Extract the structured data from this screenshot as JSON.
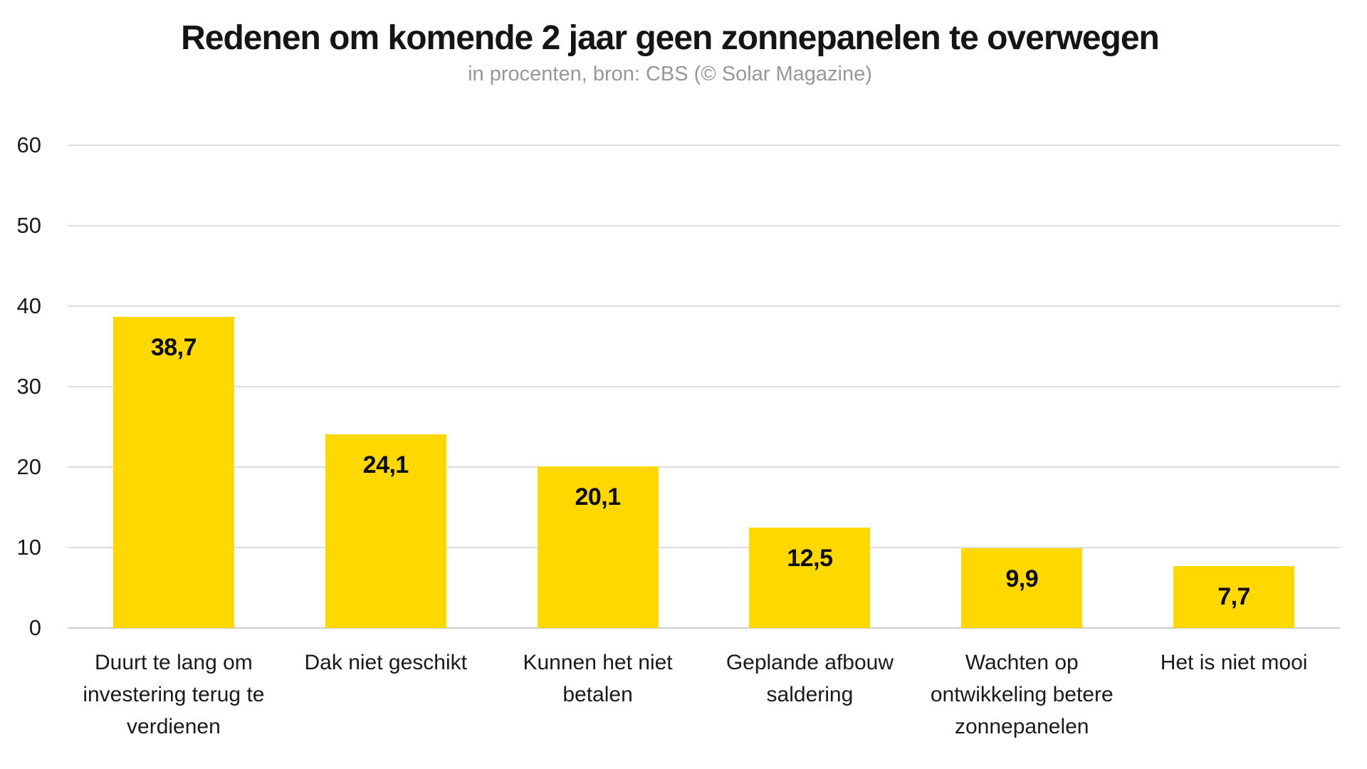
{
  "chart": {
    "title": "Redenen om komende 2 jaar geen zonnepanelen te overwegen",
    "subtitle": "in procenten, bron: CBS (© Solar Magazine)"
  },
  "chart_data": {
    "type": "bar",
    "title": "Redenen om komende 2 jaar geen zonnepanelen te overwegen",
    "subtitle": "in procenten, bron: CBS (© Solar Magazine)",
    "unit": "percent",
    "categories": [
      "Duurt te lang om investering terug te verdienen",
      "Dak niet geschikt",
      "Kunnen het niet betalen",
      "Geplande afbouw saldering",
      "Wachten op ontwikkeling betere zonnepanelen",
      "Het is niet mooi"
    ],
    "category_lines": [
      [
        "Duurt te lang om",
        "investering terug te",
        "verdienen"
      ],
      [
        "Dak niet geschikt"
      ],
      [
        "Kunnen het niet",
        "betalen"
      ],
      [
        "Geplande afbouw",
        "saldering"
      ],
      [
        "Wachten op",
        "ontwikkeling betere",
        "zonnepanelen"
      ],
      [
        "Het is niet mooi"
      ]
    ],
    "values": [
      38.7,
      24.1,
      20.1,
      12.5,
      9.9,
      7.7
    ],
    "value_labels": [
      "38,7",
      "24,1",
      "20,1",
      "12,5",
      "9,9",
      "7,7"
    ],
    "xlabel": "",
    "ylabel": "",
    "ylim": [
      0,
      60
    ],
    "yticks": [
      0,
      10,
      20,
      30,
      40,
      50,
      60
    ],
    "grid": "horizontal",
    "legend": "none",
    "bar_color": "#ffd800",
    "gridline_color": "#dcdcdc",
    "title_color": "#151515",
    "subtitle_color": "#979797",
    "label_color": "#1a1a1a"
  }
}
